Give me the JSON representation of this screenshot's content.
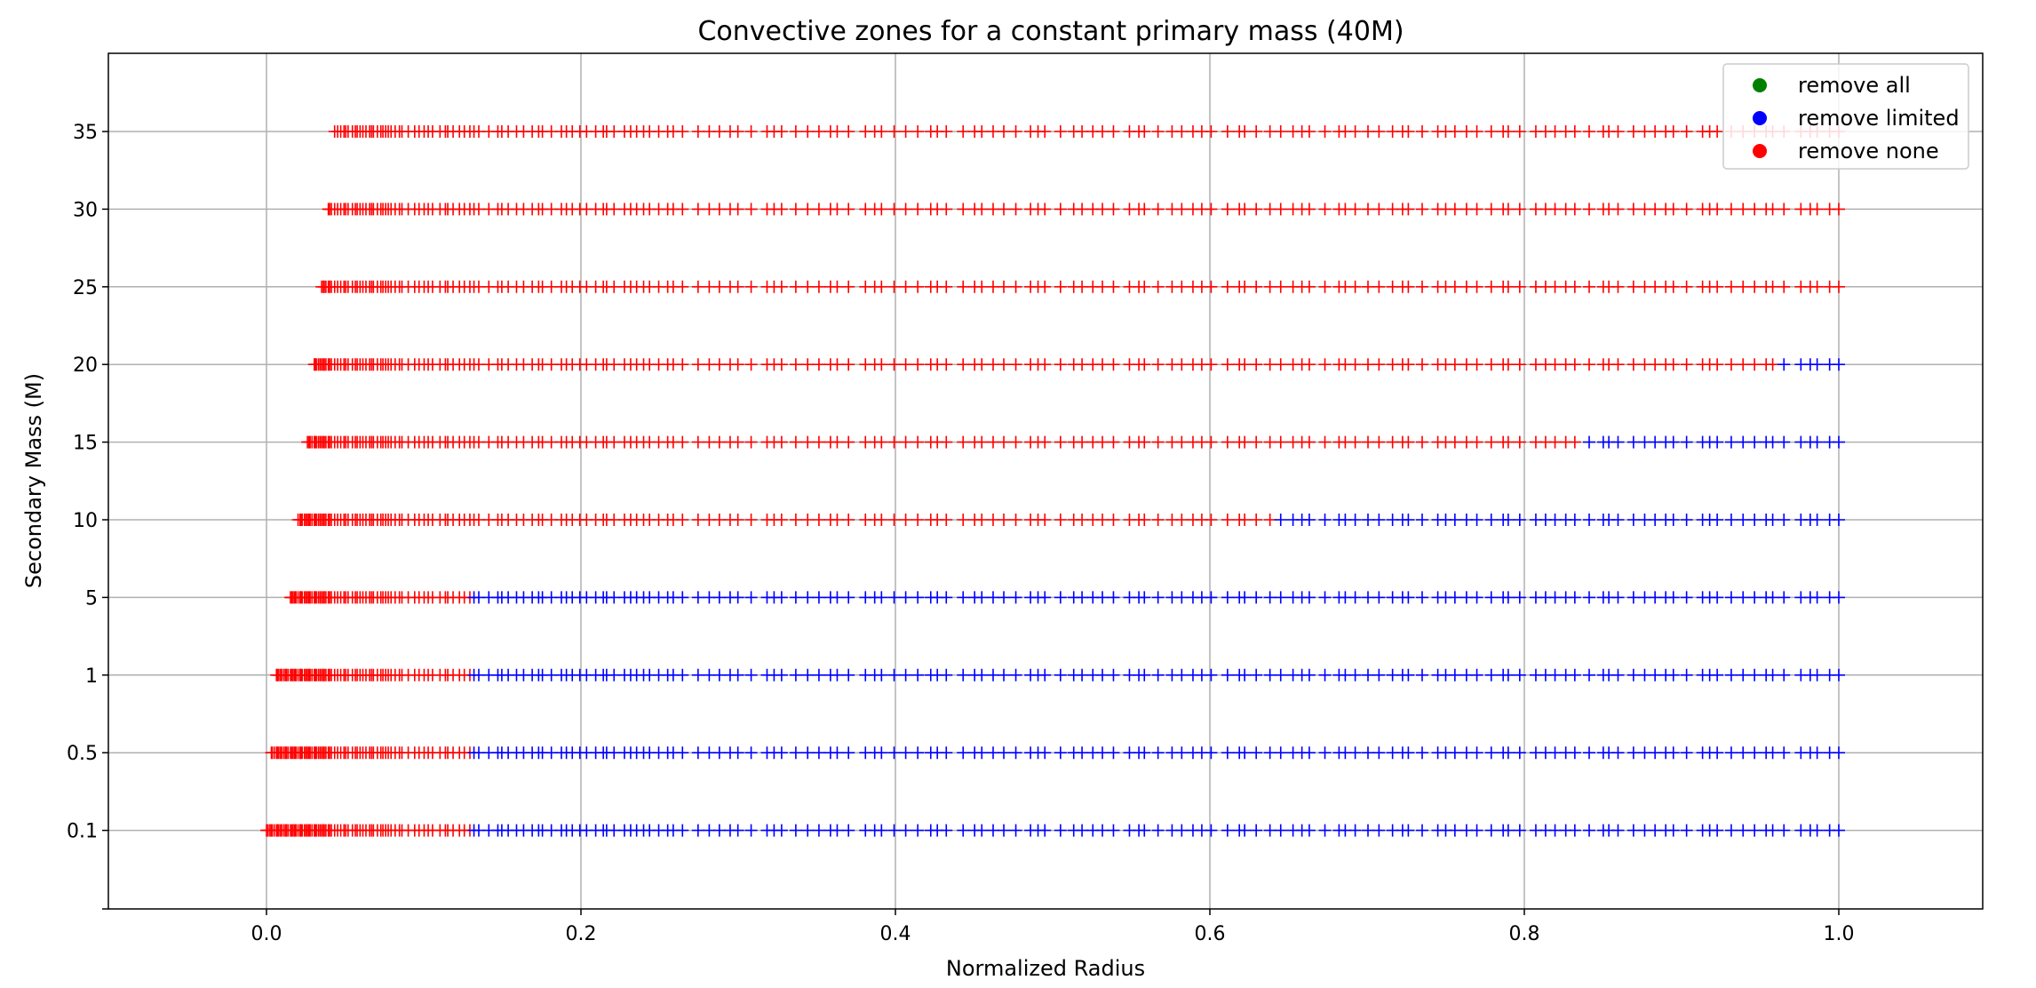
{
  "chart_data": {
    "type": "scatter",
    "title": "Convective zones for a constant primary mass (40M)",
    "xlabel": "Normalized Radius",
    "ylabel": "Secondary Mass (M)",
    "xlim": [
      -0.1,
      1.1
    ],
    "x_ticks": [
      "0.0",
      "0.2",
      "0.4",
      "0.6",
      "0.8",
      "1.0"
    ],
    "x_tick_values": [
      0.0,
      0.2,
      0.4,
      0.6,
      0.8,
      1.0
    ],
    "categories": [
      "0.1",
      "0.5",
      "1",
      "5",
      "10",
      "15",
      "20",
      "25",
      "30",
      "35"
    ],
    "grid": true,
    "legend_position": "top-right",
    "marker": "+",
    "legend": [
      {
        "name": "remove all",
        "color": "#008000"
      },
      {
        "name": "remove limited",
        "color": "#0000ff"
      },
      {
        "name": "remove none",
        "color": "#ff0000"
      }
    ],
    "rows": [
      {
        "secondary_mass": "0.1",
        "x_start": 0.0,
        "red_end": 0.13
      },
      {
        "secondary_mass": "0.5",
        "x_start": 0.003,
        "red_end": 0.13
      },
      {
        "secondary_mass": "1",
        "x_start": 0.006,
        "red_end": 0.13
      },
      {
        "secondary_mass": "5",
        "x_start": 0.014,
        "red_end": 0.13
      },
      {
        "secondary_mass": "10",
        "x_start": 0.02,
        "red_end": 0.645
      },
      {
        "secondary_mass": "15",
        "x_start": 0.026,
        "red_end": 0.84
      },
      {
        "secondary_mass": "20",
        "x_start": 0.03,
        "red_end": 0.965
      },
      {
        "secondary_mass": "25",
        "x_start": 0.035,
        "red_end": 1.0
      },
      {
        "secondary_mass": "30",
        "x_start": 0.039,
        "red_end": 1.0
      },
      {
        "secondary_mass": "35",
        "x_start": 0.042,
        "red_end": 1.0
      }
    ]
  }
}
